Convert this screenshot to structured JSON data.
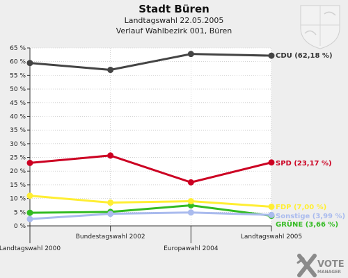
{
  "chart_data": {
    "type": "line",
    "title": "Stadt Büren",
    "subtitle_1": "Landtagswahl 22.05.2005",
    "subtitle_2": "Verlauf Wahlbezirk 001, Büren",
    "categories": [
      "Landtagswahl 2000",
      "Bundestagswahl 2002",
      "Europawahl 2004",
      "Landtagswahl 2005"
    ],
    "ylim": [
      0,
      65
    ],
    "yticks": [
      "0 %",
      "5 %",
      "10 %",
      "15 %",
      "20 %",
      "25 %",
      "30 %",
      "35 %",
      "40 %",
      "45 %",
      "50 %",
      "55 %",
      "60 %",
      "65 %"
    ],
    "grid": true,
    "series": [
      {
        "name": "CDU",
        "end_label": "CDU (62,18 %)",
        "color": "#444444",
        "values": [
          59.5,
          57.0,
          62.8,
          62.18
        ]
      },
      {
        "name": "SPD",
        "end_label": "SPD (23,17 %)",
        "color": "#cc0022",
        "values": [
          23.0,
          25.7,
          15.9,
          23.17
        ]
      },
      {
        "name": "FDP",
        "end_label": "FDP (7,00 %)",
        "color": "#ffee33",
        "values": [
          11.0,
          8.5,
          9.0,
          7.0
        ]
      },
      {
        "name": "Sonstige",
        "end_label": "Sonstige (3,99 %)",
        "color": "#aabbee",
        "values": [
          2.5,
          4.4,
          4.9,
          3.99
        ]
      },
      {
        "name": "GRÜNE",
        "end_label": "GRÜNE (3,66 %)",
        "color": "#33bb22",
        "values": [
          4.8,
          5.1,
          7.5,
          3.66
        ]
      }
    ]
  },
  "branding": {
    "logo_line1": "VOTE",
    "logo_line2": "MANAGER",
    "logo_mark_color": "#888888"
  }
}
